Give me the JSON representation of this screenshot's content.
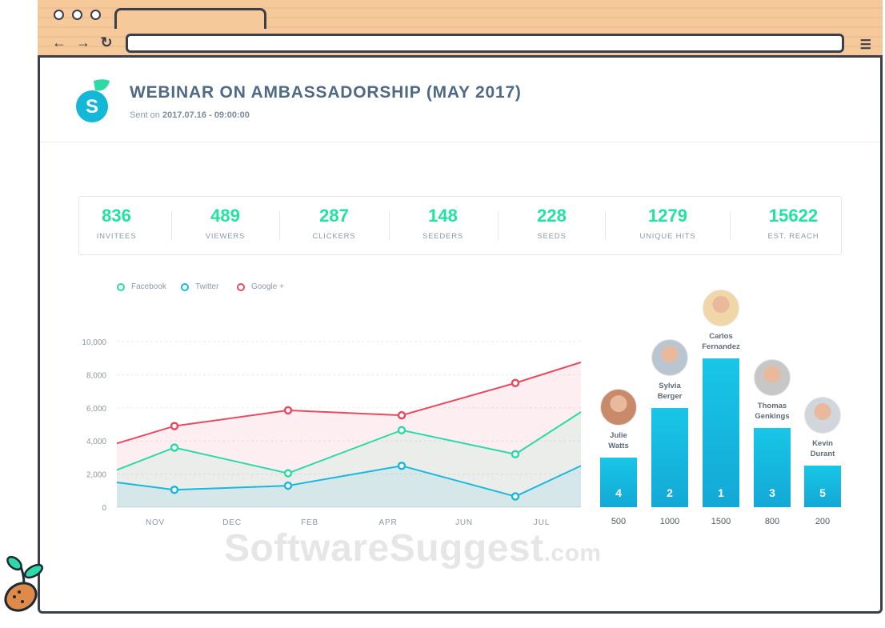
{
  "header": {
    "title": "WEBINAR ON AMBASSADORSHIP (MAY 2017)",
    "sent_prefix": "Sent on",
    "sent_date": "2017.07.16 - 09:00:00"
  },
  "stats": [
    {
      "value": "836",
      "label": "INVITEES"
    },
    {
      "value": "489",
      "label": "VIEWERS"
    },
    {
      "value": "287",
      "label": "CLICKERS"
    },
    {
      "value": "148",
      "label": "SEEDERS"
    },
    {
      "value": "228",
      "label": "SEEDS"
    },
    {
      "value": "1279",
      "label": "UNIQUE HITS"
    },
    {
      "value": "15622",
      "label": "EST. REACH"
    }
  ],
  "colors": {
    "accent_green": "#1fe3a0",
    "facebook": "#2ed9a8",
    "twitter": "#1ab8dd",
    "google": "#e84a5f",
    "bar": "#18c6e6",
    "title": "#4e6a86"
  },
  "chart_data": {
    "type": "area",
    "legend": [
      "Facebook",
      "Twitter",
      "Google +"
    ],
    "x": [
      "NOV",
      "DEC",
      "FEB",
      "APR",
      "JUN",
      "JUL"
    ],
    "y_ticks": [
      "0",
      "2,000",
      "4,000",
      "6,000",
      "8,000",
      "10,000"
    ],
    "ylim": [
      0,
      10000
    ],
    "series": [
      {
        "name": "Google +",
        "values": [
          3850,
          4900,
          5850,
          5550,
          7500,
          8750
        ]
      },
      {
        "name": "Facebook",
        "values": [
          2250,
          3600,
          2050,
          4650,
          3200,
          5750
        ]
      },
      {
        "name": "Twitter",
        "values": [
          1500,
          1050,
          1300,
          2500,
          650,
          2500
        ]
      }
    ]
  },
  "leaderboard": [
    {
      "name_line1": "Julie",
      "name_line2": "Watts",
      "rank": "4",
      "value": "500",
      "avatar": "woman-avatar"
    },
    {
      "name_line1": "Sylvia",
      "name_line2": "Berger",
      "rank": "2",
      "value": "1000",
      "avatar": "woman-avatar"
    },
    {
      "name_line1": "Carlos",
      "name_line2": "Fernandez",
      "rank": "1",
      "value": "1500",
      "avatar": "man-avatar"
    },
    {
      "name_line1": "Thomas",
      "name_line2": "Genkings",
      "rank": "3",
      "value": "800",
      "avatar": "man-avatar"
    },
    {
      "name_line1": "Kevin",
      "name_line2": "Durant",
      "rank": "5",
      "value": "200",
      "avatar": "man-avatar"
    }
  ],
  "watermark": {
    "main": "SoftwareSuggest",
    "suffix": ".com"
  }
}
